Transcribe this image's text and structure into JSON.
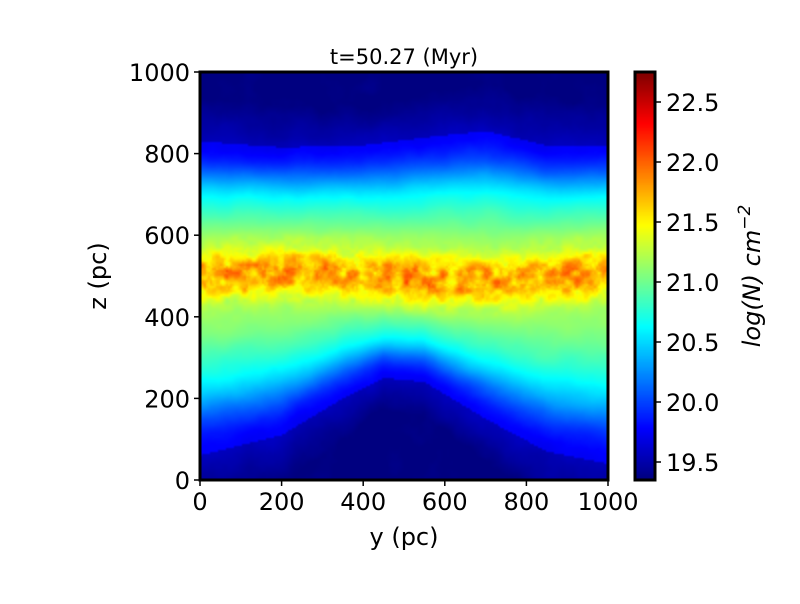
{
  "chart_data": {
    "type": "heatmap",
    "title": "t=50.27 (Myr)",
    "xlabel": "y (pc)",
    "ylabel": "z (pc)",
    "colorbar_label": "log(N) cm⁻²",
    "colorbar_label_parts": {
      "base": "log(N) cm",
      "exp": "−2"
    },
    "xlim": [
      0,
      1000
    ],
    "ylim": [
      0,
      1000
    ],
    "xticks": [
      "0",
      "200",
      "400",
      "600",
      "800",
      "1000"
    ],
    "yticks": [
      "0",
      "200",
      "400",
      "600",
      "800",
      "1000"
    ],
    "colorbar_range": [
      19.35,
      22.75
    ],
    "colorbar_ticks": [
      "19.5",
      "20.0",
      "20.5",
      "21.0",
      "21.5",
      "22.0",
      "22.5"
    ],
    "colormap": "jet",
    "colors": {
      "low": "#00007f",
      "mid": "#7dff7a",
      "high": "#7f0000"
    },
    "structure": {
      "midplane_z": 500,
      "dense_band_halfwidth": 60,
      "upper_edge_profile": [
        [
          0,
          830
        ],
        [
          200,
          815
        ],
        [
          400,
          820
        ],
        [
          600,
          845
        ],
        [
          700,
          855
        ],
        [
          850,
          820
        ],
        [
          1000,
          820
        ]
      ],
      "lower_edge_profile": [
        [
          0,
          60
        ],
        [
          200,
          110
        ],
        [
          350,
          200
        ],
        [
          450,
          250
        ],
        [
          550,
          240
        ],
        [
          700,
          150
        ],
        [
          850,
          70
        ],
        [
          1000,
          40
        ]
      ]
    }
  }
}
